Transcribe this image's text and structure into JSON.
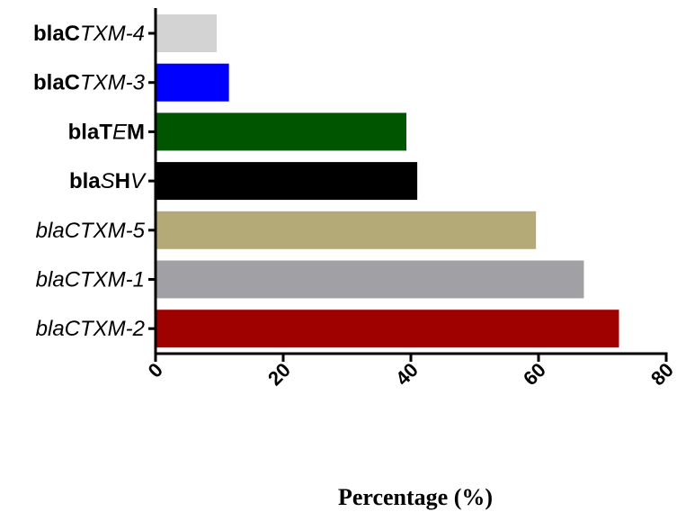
{
  "chart_data": {
    "type": "bar",
    "orientation": "horizontal",
    "xlabel": "Percentage (%)",
    "ylabel": "",
    "xlim": [
      0,
      80
    ],
    "xticks": [
      0,
      20,
      40,
      60,
      80
    ],
    "grid": false,
    "categories": [
      {
        "label": "blaCTXM-4",
        "parts": [
          {
            "t": "blaC",
            "b": true,
            "i": false
          },
          {
            "t": "TXM-4",
            "b": false,
            "i": true
          }
        ],
        "value": 9.6,
        "color": "#d3d3d3"
      },
      {
        "label": "blaCTXM-3",
        "parts": [
          {
            "t": "blaC",
            "b": true,
            "i": false
          },
          {
            "t": "TXM-3",
            "b": false,
            "i": true
          }
        ],
        "value": 11.5,
        "color": "#0000ff"
      },
      {
        "label": "blaTEM",
        "parts": [
          {
            "t": "blaT",
            "b": true,
            "i": false
          },
          {
            "t": "E",
            "b": false,
            "i": true
          },
          {
            "t": "M",
            "b": true,
            "i": false
          }
        ],
        "value": 39.3,
        "color": "#005500"
      },
      {
        "label": "blaSHV",
        "parts": [
          {
            "t": "bla",
            "b": true,
            "i": false
          },
          {
            "t": "S",
            "b": false,
            "i": true
          },
          {
            "t": "H",
            "b": true,
            "i": false
          },
          {
            "t": "V",
            "b": false,
            "i": true
          }
        ],
        "value": 41.0,
        "color": "#000000"
      },
      {
        "label": "blaCTXM-5",
        "parts": [
          {
            "t": "blaCTXM-5",
            "b": false,
            "i": true
          }
        ],
        "value": 59.6,
        "color": "#b4aa77"
      },
      {
        "label": "blaCTXM-1",
        "parts": [
          {
            "t": "blaCTXM-1",
            "b": false,
            "i": true
          }
        ],
        "value": 67.1,
        "color": "#a1a1a5"
      },
      {
        "label": "blaCTXM-2",
        "parts": [
          {
            "t": "blaCTXM-2",
            "b": false,
            "i": true
          }
        ],
        "value": 72.6,
        "color": "#9f0000"
      }
    ]
  }
}
